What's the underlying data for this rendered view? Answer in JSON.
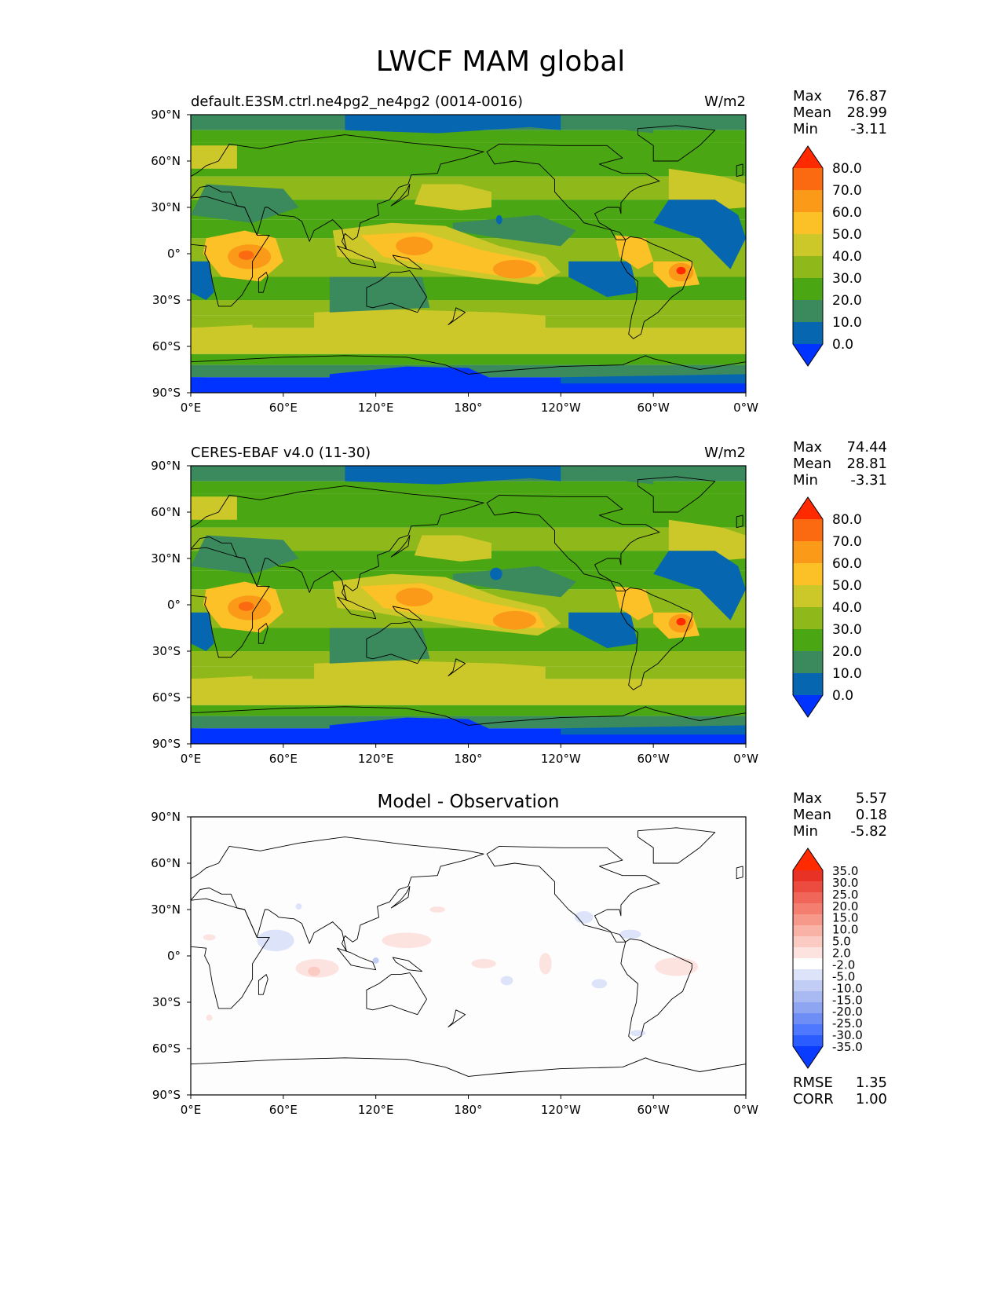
{
  "figure_title": "LWCF MAM global",
  "colors": {
    "main_levels": [
      "#0033ff",
      "#0766b0",
      "#3a8a5e",
      "#4aa612",
      "#8fb81a",
      "#cdc82a",
      "#fbc126",
      "#fb9a18",
      "#fb6a10",
      "#ff2a00"
    ],
    "diff_levels": [
      "#0a3cff",
      "#2b5cff",
      "#4e78ff",
      "#6f8ef5",
      "#8ea6f2",
      "#a9b9f2",
      "#c2cdf5",
      "#dde3f9",
      "#ffffff",
      "#fde3df",
      "#fbcac2",
      "#f9b2a6",
      "#f6998b",
      "#f47f70",
      "#f06658",
      "#ec4c3f",
      "#e83225",
      "#ff2a00"
    ],
    "land_outline": "#000000"
  },
  "panels": [
    {
      "id": "model",
      "title_left": "default.E3SM.ctrl.ne4pg2_ne4pg2 (0014-0016)",
      "title_right": "W/m2",
      "title_center": "",
      "stats": [
        {
          "label": "Max",
          "value": "76.87"
        },
        {
          "label": "Mean",
          "value": "28.99"
        },
        {
          "label": "Min",
          "value": "-3.11"
        }
      ],
      "colorbar_labels": [
        "80.0",
        "70.0",
        "60.0",
        "50.0",
        "40.0",
        "30.0",
        "20.0",
        "10.0",
        "0.0"
      ],
      "footer_stats": []
    },
    {
      "id": "obs",
      "title_left": "CERES-EBAF v4.0 (11-30)",
      "title_right": "W/m2",
      "title_center": "",
      "stats": [
        {
          "label": "Max",
          "value": "74.44"
        },
        {
          "label": "Mean",
          "value": "28.81"
        },
        {
          "label": "Min",
          "value": "-3.31"
        }
      ],
      "colorbar_labels": [
        "80.0",
        "70.0",
        "60.0",
        "50.0",
        "40.0",
        "30.0",
        "20.0",
        "10.0",
        "0.0"
      ],
      "footer_stats": []
    },
    {
      "id": "diff",
      "title_left": "",
      "title_right": "",
      "title_center": "Model - Observation",
      "stats": [
        {
          "label": "Max",
          "value": "5.57"
        },
        {
          "label": "Mean",
          "value": "0.18"
        },
        {
          "label": "Min",
          "value": "-5.82"
        }
      ],
      "colorbar_labels": [
        "35.0",
        "30.0",
        "25.0",
        "20.0",
        "15.0",
        "10.0",
        "5.0",
        "2.0",
        "-2.0",
        "-5.0",
        "-10.0",
        "-15.0",
        "-20.0",
        "-25.0",
        "-30.0",
        "-35.0"
      ],
      "footer_stats": [
        {
          "label": "RMSE",
          "value": "1.35"
        },
        {
          "label": "CORR",
          "value": "1.00"
        }
      ]
    }
  ],
  "chart_data": [
    {
      "type": "heatmap",
      "title": "default.E3SM.ctrl.ne4pg2_ne4pg2 (0014-0016)",
      "units": "W/m2",
      "x_ticks": [
        "0°E",
        "60°E",
        "120°E",
        "180°",
        "120°W",
        "60°W",
        "0°W"
      ],
      "y_ticks": [
        "90°N",
        "60°N",
        "30°N",
        "0°",
        "30°S",
        "60°S",
        "90°S"
      ],
      "xlim": [
        0,
        360
      ],
      "ylim": [
        -90,
        90
      ],
      "levels": [
        0,
        10,
        20,
        30,
        40,
        50,
        60,
        70,
        80
      ],
      "max": 76.87,
      "mean": 28.99,
      "min": -3.11,
      "features": [
        {
          "lon": 38,
          "lat": -2,
          "value": 70
        },
        {
          "lon": 145,
          "lat": 5,
          "value": 62
        },
        {
          "lon": 210,
          "lat": -10,
          "value": 60
        },
        {
          "lon": 318,
          "lat": -12,
          "value": 72
        },
        {
          "lon": 285,
          "lat": 0,
          "value": 55
        }
      ]
    },
    {
      "type": "heatmap",
      "title": "CERES-EBAF v4.0 (11-30)",
      "units": "W/m2",
      "x_ticks": [
        "0°E",
        "60°E",
        "120°E",
        "180°",
        "120°W",
        "60°W",
        "0°W"
      ],
      "y_ticks": [
        "90°N",
        "60°N",
        "30°N",
        "0°",
        "30°S",
        "60°S",
        "90°S"
      ],
      "xlim": [
        0,
        360
      ],
      "ylim": [
        -90,
        90
      ],
      "levels": [
        0,
        10,
        20,
        30,
        40,
        50,
        60,
        70,
        80
      ],
      "max": 74.44,
      "mean": 28.81,
      "min": -3.31,
      "features": [
        {
          "lon": 40,
          "lat": 0,
          "value": 68
        },
        {
          "lon": 142,
          "lat": 5,
          "value": 60
        },
        {
          "lon": 210,
          "lat": -10,
          "value": 60
        },
        {
          "lon": 320,
          "lat": -12,
          "value": 70
        },
        {
          "lon": 285,
          "lat": 0,
          "value": 55
        }
      ]
    },
    {
      "type": "heatmap",
      "title": "Model - Observation",
      "x_ticks": [
        "0°E",
        "60°E",
        "120°E",
        "180°",
        "120°W",
        "60°W",
        "0°W"
      ],
      "y_ticks": [
        "90°N",
        "60°N",
        "30°N",
        "0°",
        "30°S",
        "60°S",
        "90°S"
      ],
      "xlim": [
        0,
        360
      ],
      "ylim": [
        -90,
        90
      ],
      "levels": [
        -35,
        -30,
        -25,
        -20,
        -15,
        -10,
        -5,
        -2,
        2,
        5,
        10,
        15,
        20,
        25,
        30,
        35
      ],
      "max": 5.57,
      "mean": 0.18,
      "min": -5.82,
      "rmse": 1.35,
      "corr": 1.0
    }
  ]
}
